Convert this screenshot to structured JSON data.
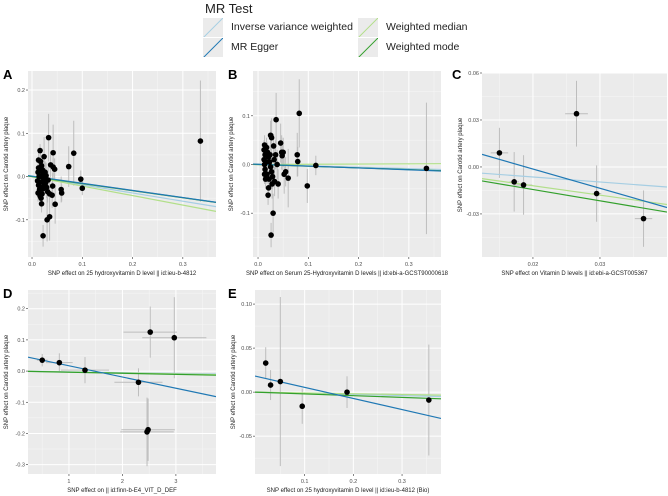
{
  "legend": {
    "title": "MR Test",
    "items": [
      {
        "label": "Inverse variance weighted",
        "key": "ivw",
        "color": "#a6cee3"
      },
      {
        "label": "MR Egger",
        "key": "egger",
        "color": "#1f78b4"
      },
      {
        "label": "Weighted median",
        "key": "median",
        "color": "#b2df8a"
      },
      {
        "label": "Weighted mode",
        "key": "mode",
        "color": "#33a02c"
      }
    ]
  },
  "chart_data": [
    {
      "type": "scatter",
      "panel": "A",
      "xlabel": "SNP effect on 25 hydroxyvitamin D level || id:ieu-b-4812",
      "ylabel": "SNP effect on Carotid artery plaque",
      "xlim": [
        -0.008,
        0.366
      ],
      "ylim": [
        -0.186,
        0.244
      ],
      "xticks": [
        0.0,
        0.1,
        0.2,
        0.3
      ],
      "xticklabels": [
        "0.0",
        "0.1",
        "0.2",
        "0.3"
      ],
      "yticks": [
        -0.1,
        0.0,
        0.1,
        0.2
      ],
      "yticklabels": [
        "-0.1",
        "0.0",
        "0.1",
        "0.2"
      ],
      "lines": {
        "ivw": [
          0,
          -0.19
        ],
        "egger": [
          0.001,
          -0.165
        ],
        "median": [
          0,
          -0.22
        ],
        "mode": [
          0,
          -0.163
        ]
      },
      "points": [
        [
          0.335,
          0.082,
          0,
          0.14
        ],
        [
          0.033,
          0.09,
          0,
          0.055
        ],
        [
          0.083,
          0.054,
          0,
          0.075
        ],
        [
          0.073,
          0.023,
          0,
          0.047
        ],
        [
          0.042,
          0.055,
          0,
          0.065
        ],
        [
          0.097,
          -0.006,
          0,
          0.02
        ],
        [
          0.1,
          -0.027,
          0,
          0.016
        ],
        [
          0.058,
          -0.03,
          0,
          0.03
        ],
        [
          0.059,
          -0.038,
          0,
          0.02
        ],
        [
          0.022,
          -0.137,
          0,
          0.025
        ],
        [
          0.03,
          -0.1,
          0,
          0.05
        ],
        [
          0.035,
          -0.093,
          0,
          0.055
        ],
        [
          0.046,
          -0.064,
          0,
          0.045
        ],
        [
          0.041,
          -0.022,
          0,
          0.03
        ],
        [
          0.04,
          -0.043,
          0,
          0.03
        ],
        [
          0.016,
          0.06,
          0,
          0.015
        ],
        [
          0.024,
          0.046,
          0,
          0.045
        ],
        [
          0.037,
          0.027,
          0,
          0.03
        ],
        [
          0.045,
          0.017,
          0,
          0.025
        ],
        [
          0.042,
          0.022,
          0,
          0.02
        ],
        [
          0.019,
          -0.063,
          0,
          0.02
        ],
        [
          0.013,
          0.02,
          0,
          0.02
        ],
        [
          0.012,
          0.01,
          0,
          0.02
        ],
        [
          0.014,
          0.0,
          0,
          0.02
        ],
        [
          0.011,
          -0.01,
          0,
          0.02
        ],
        [
          0.013,
          -0.02,
          0,
          0.02
        ],
        [
          0.015,
          -0.03,
          0,
          0.02
        ],
        [
          0.012,
          -0.038,
          0,
          0.02
        ],
        [
          0.016,
          -0.045,
          0,
          0.02
        ],
        [
          0.018,
          -0.05,
          0,
          0.02
        ],
        [
          0.02,
          -0.04,
          0,
          0.02
        ],
        [
          0.017,
          0.035,
          0,
          0.02
        ],
        [
          0.019,
          0.025,
          0,
          0.02
        ],
        [
          0.021,
          0.015,
          0,
          0.02
        ],
        [
          0.023,
          0.005,
          0,
          0.02
        ],
        [
          0.025,
          -0.005,
          0,
          0.02
        ],
        [
          0.027,
          -0.015,
          0,
          0.025
        ],
        [
          0.029,
          -0.025,
          0,
          0.025
        ],
        [
          0.031,
          -0.035,
          0,
          0.025
        ],
        [
          0.022,
          -0.028,
          0,
          0.02
        ],
        [
          0.026,
          0.01,
          0,
          0.025
        ],
        [
          0.028,
          0.002,
          0,
          0.03
        ],
        [
          0.032,
          -0.008,
          0,
          0.03
        ],
        [
          0.018,
          0.0,
          0,
          0.02
        ],
        [
          0.015,
          0.012,
          0,
          0.02
        ],
        [
          0.02,
          -0.012,
          0,
          0.02
        ],
        [
          0.024,
          -0.02,
          0,
          0.02
        ],
        [
          0.013,
          0.038,
          0,
          0.02
        ],
        [
          0.035,
          -0.04,
          0,
          0.03
        ],
        [
          0.016,
          -0.025,
          0,
          0.02
        ]
      ]
    },
    {
      "type": "scatter",
      "panel": "B",
      "xlabel": "SNP effect on Serum 25-Hydroxyvitamin D levels || id:ebi-a-GCST90000618",
      "ylabel": "SNP effect on Carotid artery plaque",
      "xlim": [
        -0.01,
        0.364
      ],
      "ylim": [
        -0.19,
        0.192
      ],
      "xticks": [
        0.0,
        0.1,
        0.2,
        0.3
      ],
      "xticklabels": [
        "0.0",
        "0.1",
        "0.2",
        "0.3"
      ],
      "yticks": [
        -0.1,
        0.0,
        0.1
      ],
      "yticklabels": [
        "-0.1",
        "0.0",
        "0.1"
      ],
      "lines": {
        "ivw": [
          0,
          -0.028
        ],
        "egger": [
          0.0005,
          -0.038
        ],
        "median": [
          0,
          0.004
        ],
        "mode": [
          0,
          -0.035
        ]
      },
      "points": [
        [
          0.335,
          -0.008,
          0,
          0.135
        ],
        [
          0.082,
          0.105,
          0,
          0.07
        ],
        [
          0.036,
          0.092,
          0,
          0.055
        ],
        [
          0.078,
          0.02,
          0,
          0.045
        ],
        [
          0.079,
          0.006,
          0,
          0.03
        ],
        [
          0.115,
          -0.002,
          0,
          0.02
        ],
        [
          0.098,
          -0.044,
          0,
          0.035
        ],
        [
          0.026,
          -0.145,
          0,
          0.025
        ],
        [
          0.03,
          -0.1,
          0,
          0.04
        ],
        [
          0.02,
          -0.063,
          0,
          0.02
        ],
        [
          0.045,
          0.044,
          0,
          0.04
        ],
        [
          0.047,
          0.025,
          0,
          0.035
        ],
        [
          0.05,
          0.025,
          0,
          0.03
        ],
        [
          0.06,
          -0.028,
          0,
          0.06
        ],
        [
          0.052,
          -0.02,
          0,
          0.04
        ],
        [
          0.04,
          -0.04,
          0,
          0.03
        ],
        [
          0.025,
          0.06,
          0,
          0.03
        ],
        [
          0.027,
          0.055,
          0,
          0.04
        ],
        [
          0.021,
          -0.048,
          0,
          0.02
        ],
        [
          0.048,
          0.018,
          0,
          0.03
        ],
        [
          0.055,
          -0.015,
          0,
          0.03
        ],
        [
          0.033,
          -0.035,
          0,
          0.03
        ],
        [
          0.013,
          0.04,
          0,
          0.02
        ],
        [
          0.012,
          0.03,
          0,
          0.02
        ],
        [
          0.014,
          0.02,
          0,
          0.02
        ],
        [
          0.012,
          0.01,
          0,
          0.02
        ],
        [
          0.013,
          0.0,
          0,
          0.02
        ],
        [
          0.014,
          -0.01,
          0,
          0.02
        ],
        [
          0.013,
          -0.02,
          0,
          0.02
        ],
        [
          0.015,
          -0.03,
          0,
          0.02
        ],
        [
          0.017,
          0.035,
          0,
          0.02
        ],
        [
          0.019,
          0.025,
          0,
          0.02
        ],
        [
          0.021,
          0.015,
          0,
          0.02
        ],
        [
          0.023,
          0.005,
          0,
          0.02
        ],
        [
          0.025,
          -0.005,
          0,
          0.02
        ],
        [
          0.027,
          -0.015,
          0,
          0.025
        ],
        [
          0.029,
          -0.025,
          0,
          0.025
        ],
        [
          0.031,
          0.038,
          0,
          0.025
        ],
        [
          0.035,
          0.02,
          0,
          0.03
        ],
        [
          0.038,
          0.0,
          0,
          0.03
        ],
        [
          0.018,
          -0.02,
          0,
          0.02
        ],
        [
          0.022,
          -0.03,
          0,
          0.02
        ],
        [
          0.016,
          0.005,
          0,
          0.02
        ],
        [
          0.024,
          0.02,
          0,
          0.02
        ],
        [
          0.028,
          -0.04,
          0,
          0.03
        ],
        [
          0.032,
          0.01,
          0,
          0.03
        ]
      ]
    },
    {
      "type": "scatter",
      "panel": "C",
      "xlabel": "SNP effect on Vitamin D levels || id:ebi-a-GCST005367",
      "ylabel": "SNP effect on Carotid artery plaque",
      "xlim": [
        0.0124,
        0.04
      ],
      "ylim": [
        -0.0575,
        0.06
      ],
      "xticks": [
        0.02,
        0.03
      ],
      "xticklabels": [
        "0.02",
        "0.03"
      ],
      "yticks": [
        -0.03,
        0.0,
        0.03,
        0.06
      ],
      "yticklabels": [
        "-0.03",
        "0.00",
        "0.03",
        "0.06"
      ],
      "lines": {
        "ivw": [
          0,
          -0.32
        ],
        "egger": [
          0.0233,
          -1.23
        ],
        "median": [
          0,
          -0.6
        ],
        "mode": [
          0,
          -0.72
        ]
      },
      "points": [
        [
          0.015,
          0.009,
          0.0013,
          0.016
        ],
        [
          0.0172,
          -0.0095,
          0.0007,
          0.019
        ],
        [
          0.0186,
          -0.0115,
          0.0013,
          0.019
        ],
        [
          0.0265,
          0.034,
          0.0017,
          0.021
        ],
        [
          0.0295,
          -0.017,
          0.0007,
          0.018
        ],
        [
          0.0365,
          -0.033,
          0.0013,
          0.018
        ]
      ]
    },
    {
      "type": "scatter",
      "panel": "D",
      "xlabel": "SNP effect on  || id:finn-b-E4_VIT_D_DEF",
      "ylabel": "SNP effect on Carotid artery plaque",
      "xlim": [
        0.234,
        3.75
      ],
      "ylim": [
        -0.33,
        0.26
      ],
      "xticks": [
        1,
        2,
        3
      ],
      "xticklabels": [
        "1",
        "2",
        "3"
      ],
      "yticks": [
        -0.3,
        -0.2,
        -0.1,
        0.0,
        0.1,
        0.2
      ],
      "yticklabels": [
        "-0.3",
        "-0.2",
        "-0.1",
        "0.0",
        "0.1",
        "0.2"
      ],
      "lines": {
        "ivw": [
          0,
          -0.0025
        ],
        "egger": [
          0.053,
          -0.036
        ],
        "median": [
          0,
          -0.003
        ],
        "mode": [
          0,
          -0.0035
        ]
      },
      "points": [
        [
          0.5,
          0.035,
          0.1,
          0.02
        ],
        [
          0.82,
          0.027,
          0.25,
          0.03
        ],
        [
          1.3,
          0.003,
          0.45,
          0.042
        ],
        [
          2.3,
          -0.036,
          0.45,
          0.045
        ],
        [
          2.52,
          0.125,
          0.5,
          0.082
        ],
        [
          2.97,
          0.107,
          0.6,
          0.13
        ],
        [
          2.46,
          -0.195,
          0.5,
          0.11
        ],
        [
          2.48,
          -0.188,
          0.5,
          0.1
        ]
      ]
    },
    {
      "type": "scatter",
      "panel": "E",
      "xlabel": "SNP effect on 25 hydroxyvitamin D level || id:ieu-b-4812 (Bio)",
      "ylabel": "SNP effect on Carotid artery plaque",
      "xlim": [
        -0.002,
        0.38
      ],
      "ylim": [
        -0.093,
        0.116
      ],
      "xticks": [
        0.1,
        0.2,
        0.3
      ],
      "xticklabels": [
        "0.1",
        "0.2",
        "0.3"
      ],
      "yticks": [
        -0.05,
        0.0,
        0.05,
        0.1
      ],
      "yticklabels": [
        "-0.05",
        "0.00",
        "0.05",
        "0.10"
      ],
      "lines": {
        "ivw": [
          0,
          -0.013
        ],
        "egger": [
          0.018,
          -0.126
        ],
        "median": [
          0,
          -0.009
        ],
        "mode": [
          0,
          -0.02
        ]
      },
      "points": [
        [
          0.02,
          0.033,
          0,
          0.018
        ],
        [
          0.03,
          0.008,
          0,
          0.017
        ],
        [
          0.05,
          0.012,
          0,
          0.096
        ],
        [
          0.095,
          -0.016,
          0,
          0.02
        ],
        [
          0.187,
          0.0,
          0,
          0.018
        ],
        [
          0.355,
          -0.009,
          0,
          0.063
        ]
      ]
    }
  ]
}
